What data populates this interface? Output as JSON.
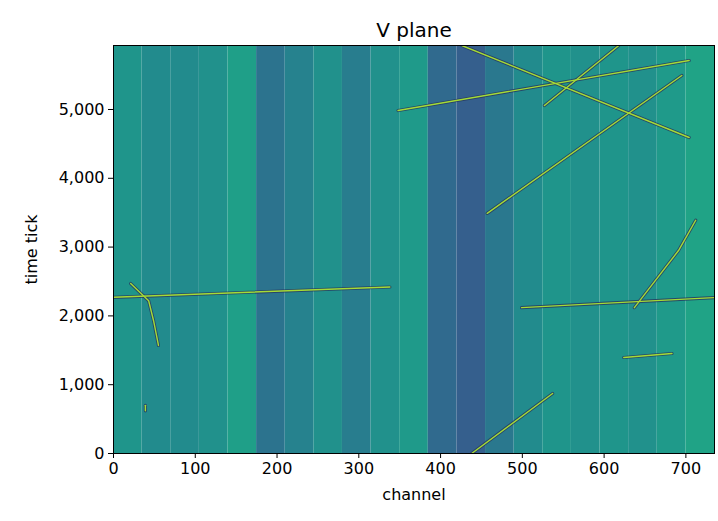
{
  "chart_data": {
    "type": "heatmap",
    "title": "V plane",
    "x_label": "channel",
    "y_label": "time tick",
    "xlim": [
      0,
      735
    ],
    "ylim": [
      0,
      5930
    ],
    "xticks": [
      0,
      100,
      200,
      300,
      400,
      500,
      600,
      700
    ],
    "yticks": [
      0,
      1000,
      2000,
      3000,
      4000,
      5000
    ],
    "cells": {
      "x_edges": [
        0,
        35,
        70,
        105,
        140,
        175,
        210,
        245,
        280,
        315,
        350,
        385,
        420,
        455,
        490,
        525,
        560,
        595,
        630,
        665,
        700,
        735
      ],
      "values": [
        0.52,
        0.48,
        0.48,
        0.5,
        0.56,
        0.38,
        0.44,
        0.5,
        0.42,
        0.5,
        0.54,
        0.34,
        0.3,
        0.4,
        0.48,
        0.52,
        0.5,
        0.52,
        0.5,
        0.54,
        0.58
      ]
    },
    "zlim": [
      0,
      1
    ],
    "color": "#a5db36",
    "series": [
      {
        "x": [
          0,
          338
        ],
        "values": [
          2270,
          2420
        ]
      },
      {
        "x": [
          499,
          734
        ],
        "values": [
          2120,
          2265
        ]
      },
      {
        "x": [
          21,
          43,
          49,
          55
        ],
        "values": [
          2470,
          2220,
          1930,
          1570
        ]
      },
      {
        "x": [
          637,
          691,
          712
        ],
        "values": [
          2120,
          2950,
          3390
        ]
      },
      {
        "x": [
          457,
          695
        ],
        "values": [
          3490,
          5494
        ]
      },
      {
        "x": [
          348,
          704
        ],
        "values": [
          4985,
          5712
        ]
      },
      {
        "x": [
          426,
          704
        ],
        "values": [
          5930,
          4593
        ]
      },
      {
        "x": [
          527,
          618
        ],
        "values": [
          5058,
          5930
        ]
      },
      {
        "x": [
          438,
          537
        ],
        "values": [
          0,
          872
        ]
      },
      {
        "x": [
          624,
          683
        ],
        "values": [
          1395,
          1453
        ]
      },
      {
        "x": [
          39,
          39
        ],
        "values": [
          620,
          700
        ]
      }
    ]
  }
}
